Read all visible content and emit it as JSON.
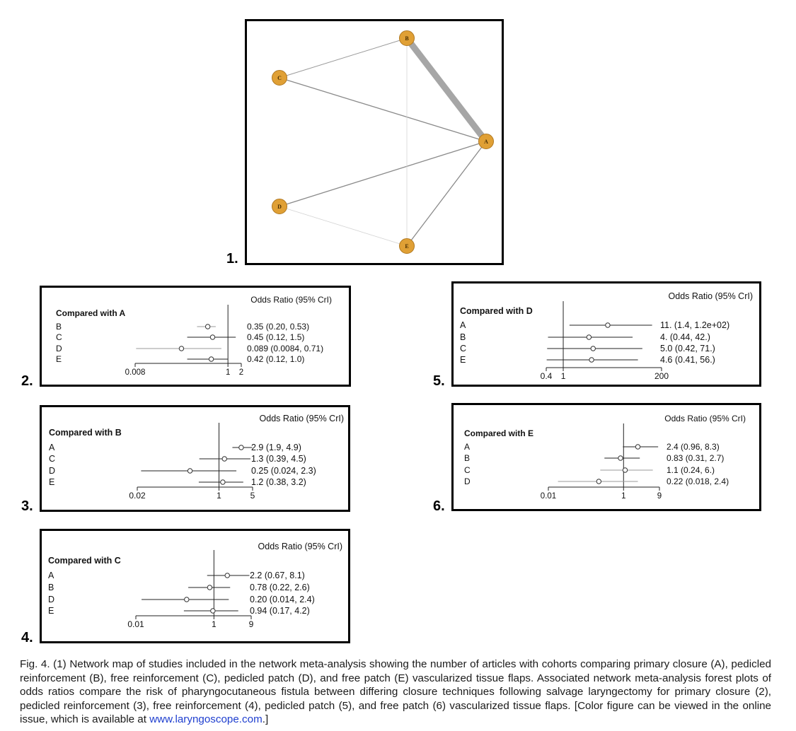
{
  "figure": {
    "network": {
      "label": "1.",
      "nodes": [
        {
          "id": "A",
          "label": "A"
        },
        {
          "id": "B",
          "label": "B"
        },
        {
          "id": "C",
          "label": "C"
        },
        {
          "id": "D",
          "label": "D"
        },
        {
          "id": "E",
          "label": "E"
        }
      ],
      "edges": [
        {
          "from": "A",
          "to": "B",
          "weight": "heavy"
        },
        {
          "from": "A",
          "to": "C",
          "weight": "normal"
        },
        {
          "from": "A",
          "to": "D",
          "weight": "normal"
        },
        {
          "from": "A",
          "to": "E",
          "weight": "normal"
        },
        {
          "from": "B",
          "to": "C",
          "weight": "light"
        },
        {
          "from": "B",
          "to": "E",
          "weight": "faint"
        },
        {
          "from": "D",
          "to": "E",
          "weight": "faint"
        }
      ],
      "node_color": "#E0A035",
      "node_stroke": "#B07820"
    },
    "forest_plots": [
      {
        "label": "2.",
        "title": "Compared with A",
        "header": "Odds Ratio (95% CrI)",
        "rows": [
          {
            "cat": "B",
            "text": "0.35 (0.20, 0.53)",
            "est": 0.35,
            "lo": 0.2,
            "hi": 0.53
          },
          {
            "cat": "C",
            "text": "0.45 (0.12, 1.5)",
            "est": 0.45,
            "lo": 0.12,
            "hi": 1.5
          },
          {
            "cat": "D",
            "text": "0.089 (0.0084, 0.71)",
            "est": 0.089,
            "lo": 0.0084,
            "hi": 0.71
          },
          {
            "cat": "E",
            "text": "0.42 (0.12, 1.0)",
            "est": 0.42,
            "lo": 0.12,
            "hi": 1.0
          }
        ],
        "ticks": [
          {
            "v": 0.008,
            "t": "0.008"
          },
          {
            "v": 1,
            "t": "1"
          },
          {
            "v": 2,
            "t": "2"
          }
        ],
        "ref": 1
      },
      {
        "label": "3.",
        "title": "Compared with B",
        "header": "Odds Ratio (95% CrI)",
        "rows": [
          {
            "cat": "A",
            "text": "2.9 (1.9, 4.9)",
            "est": 2.9,
            "lo": 1.9,
            "hi": 4.9
          },
          {
            "cat": "C",
            "text": "1.3 (0.39, 4.5)",
            "est": 1.3,
            "lo": 0.39,
            "hi": 4.5
          },
          {
            "cat": "D",
            "text": "0.25 (0.024, 2.3)",
            "est": 0.25,
            "lo": 0.024,
            "hi": 2.3
          },
          {
            "cat": "E",
            "text": "1.2 (0.38, 3.2)",
            "est": 1.2,
            "lo": 0.38,
            "hi": 3.2
          }
        ],
        "ticks": [
          {
            "v": 0.02,
            "t": "0.02"
          },
          {
            "v": 1,
            "t": "1"
          },
          {
            "v": 5,
            "t": "5"
          }
        ],
        "ref": 1
      },
      {
        "label": "4.",
        "title": "Compared with C",
        "header": "Odds Ratio (95% CrI)",
        "rows": [
          {
            "cat": "A",
            "text": "2.2 (0.67, 8.1)",
            "est": 2.2,
            "lo": 0.67,
            "hi": 8.1
          },
          {
            "cat": "B",
            "text": "0.78 (0.22, 2.6)",
            "est": 0.78,
            "lo": 0.22,
            "hi": 2.6
          },
          {
            "cat": "D",
            "text": "0.20 (0.014, 2.4)",
            "est": 0.2,
            "lo": 0.014,
            "hi": 2.4
          },
          {
            "cat": "E",
            "text": "0.94 (0.17, 4.2)",
            "est": 0.94,
            "lo": 0.17,
            "hi": 4.2
          }
        ],
        "ticks": [
          {
            "v": 0.01,
            "t": "0.01"
          },
          {
            "v": 1,
            "t": "1"
          },
          {
            "v": 9,
            "t": "9"
          }
        ],
        "ref": 1
      },
      {
        "label": "5.",
        "title": "Compared with D",
        "header": "Odds Ratio (95% CrI)",
        "rows": [
          {
            "cat": "A",
            "text": "11. (1.4, 1.2e+02)",
            "est": 11,
            "lo": 1.4,
            "hi": 120
          },
          {
            "cat": "B",
            "text": "4. (0.44, 42.)",
            "est": 4,
            "lo": 0.44,
            "hi": 42
          },
          {
            "cat": "C",
            "text": "5.0 (0.42,  71.)",
            "est": 5.0,
            "lo": 0.42,
            "hi": 71
          },
          {
            "cat": "E",
            "text": "4.6 (0.41,  56.)",
            "est": 4.6,
            "lo": 0.41,
            "hi": 56
          }
        ],
        "ticks": [
          {
            "v": 0.4,
            "t": "0.4"
          },
          {
            "v": 1,
            "t": "1"
          },
          {
            "v": 200,
            "t": "200"
          }
        ],
        "ref": 1
      },
      {
        "label": "6.",
        "title": "Compared with E",
        "header": "Odds Ratio (95% CrI)",
        "rows": [
          {
            "cat": "A",
            "text": "2.4 (0.96, 8.3)",
            "est": 2.4,
            "lo": 0.96,
            "hi": 8.3
          },
          {
            "cat": "B",
            "text": "0.83 (0.31, 2.7)",
            "est": 0.83,
            "lo": 0.31,
            "hi": 2.7
          },
          {
            "cat": "C",
            "text": "1.1 (0.24,  6.)",
            "est": 1.1,
            "lo": 0.24,
            "hi": 6
          },
          {
            "cat": "D",
            "text": "0.22 (0.018, 2.4)",
            "est": 0.22,
            "lo": 0.018,
            "hi": 2.4
          }
        ],
        "ticks": [
          {
            "v": 0.01,
            "t": "0.01"
          },
          {
            "v": 1,
            "t": "1"
          },
          {
            "v": 9,
            "t": "9"
          }
        ],
        "ref": 1
      }
    ]
  },
  "caption": {
    "text": "Fig. 4. (1) Network map of studies included in the network meta-analysis showing the number of articles with cohorts comparing primary closure (A), pedicled reinforcement (B), free reinforcement (C), pedicled patch (D), and free patch (E) vascularized tissue flaps. Associated network meta-analysis forest plots of odds ratios compare the risk of pharyngocutaneous fistula between differing closure techniques following salvage laryngectomy for primary closure (2), pedicled reinforcement (3), free reinforcement (4), pedicled patch (5), and free patch (6) vascularized tissue flaps. [Color figure can be viewed in the online issue, which is available at ",
    "link": "www.laryngoscope.com",
    "tail": ".]"
  }
}
